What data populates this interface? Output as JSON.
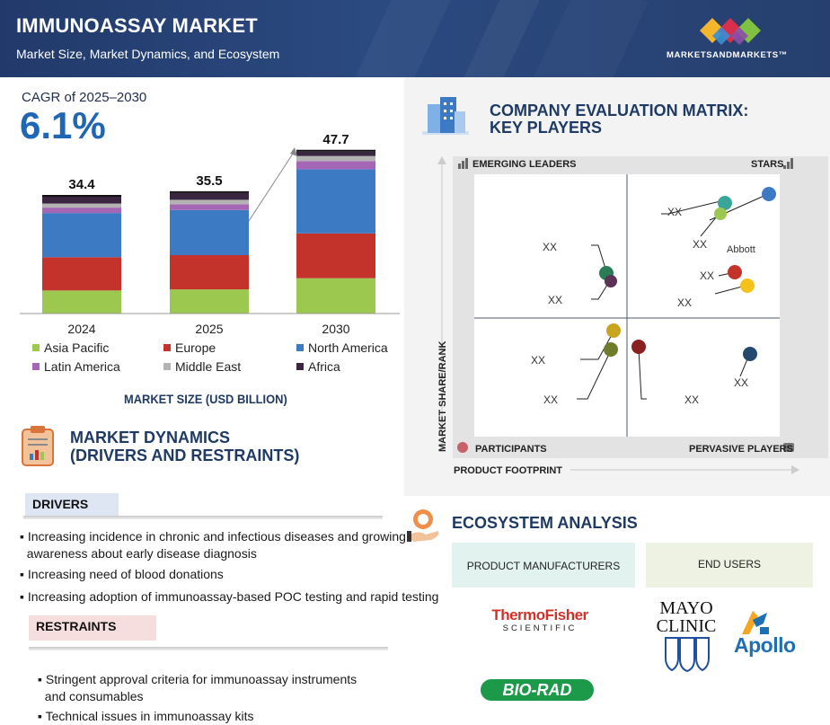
{
  "header": {
    "title": "IMMUNOASSAY MARKET",
    "subtitle": "Market Size, Market Dynamics, and Ecosystem",
    "logo_text": "MARKETSANDMARKETS™"
  },
  "cagr": {
    "label": "CAGR of 2025–2030",
    "value": "6.1%"
  },
  "chart_data": {
    "type": "bar",
    "stacked": true,
    "categories": [
      "2024",
      "2025",
      "2030"
    ],
    "totals": [
      "34.4",
      "35.5",
      "47.7"
    ],
    "series": [
      {
        "name": "Asia Pacific",
        "color": "#9dc84f",
        "values": [
          6.8,
          7.1,
          10.4
        ]
      },
      {
        "name": "Europe",
        "color": "#c4322c",
        "values": [
          9.8,
          10.1,
          13.2
        ]
      },
      {
        "name": "North America",
        "color": "#3c7bc4",
        "values": [
          13.0,
          13.3,
          18.9
        ]
      },
      {
        "name": "Latin America",
        "color": "#a566b5",
        "values": [
          1.6,
          1.7,
          2.4
        ]
      },
      {
        "name": "Middle East",
        "color": "#b3b3b3",
        "values": [
          1.2,
          1.3,
          1.5
        ]
      },
      {
        "name": "Africa",
        "color": "#3a2640",
        "values": [
          2.0,
          2.0,
          1.3
        ]
      }
    ],
    "legend_position": "bottom",
    "xlabel": "MARKET SIZE (USD BILLION)"
  },
  "dynamics": {
    "title_line1": "MARKET DYNAMICS",
    "title_line2": "(DRIVERS AND RESTRAINTS)",
    "drivers_label": "DRIVERS",
    "drivers": [
      "Increasing incidence in chronic and infectious diseases and growing",
      "awareness about early disease diagnosis",
      "Increasing need of blood donations",
      "Increasing adoption of immunoassay-based POC testing and rapid testing"
    ],
    "restraints_label": "RESTRAINTS",
    "restraints": [
      "Stringent approval criteria for immunoassay instruments",
      "and consumables",
      "Technical issues in immunoassay kits"
    ]
  },
  "matrix": {
    "title_line1": "COMPANY EVALUATION MATRIX:",
    "title_line2": "KEY PLAYERS",
    "emerging": "EMERGING LEADERS",
    "stars": "STARS",
    "participants": "PARTICIPANTS",
    "pervasive": "PERVASIVE PLAYERS",
    "y_axis": "MARKET SHARE/RANK",
    "x_axis": "PRODUCT FOOTPRINT",
    "placeholder": "XX",
    "named_company": "Abbott"
  },
  "ecosystem": {
    "title": "ECOSYSTEM ANALYSIS",
    "product_manufacturers": "PRODUCT MANUFACTURERS",
    "end_users": "END USERS",
    "thermo_line1": "ThermoFisher",
    "thermo_line2": "SCIENTIFIC",
    "biorad": "BIO-RAD",
    "mayo_line1": "MAYO",
    "mayo_line2": "CLINIC",
    "apollo": "Apollo"
  },
  "colors": {
    "navy": "#1f3a63",
    "accent_blue": "#1f67b5"
  }
}
